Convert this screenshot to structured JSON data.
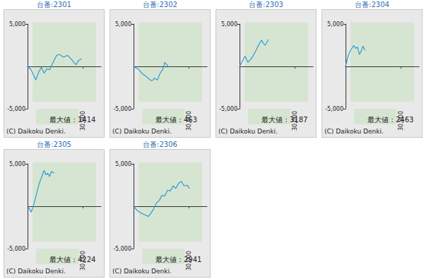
{
  "chart_data": [
    {
      "type": "line",
      "title": "台番:2301",
      "color": "#2f9ad6",
      "x": [
        0,
        1900,
        4500,
        6000,
        7500,
        9000,
        10500,
        12000,
        13500,
        15800,
        17300,
        19500,
        21800,
        24000,
        26300,
        27800,
        29300
      ],
      "values": [
        0,
        -400,
        -1600,
        -700,
        -100,
        -800,
        -300,
        -400,
        300,
        1300,
        1414,
        1100,
        1300,
        800,
        200,
        700,
        900
      ],
      "xlim": [
        0,
        40000
      ],
      "ylim": [
        -5000,
        5000
      ],
      "xticks": [
        {
          "value": 30000,
          "label": "30,000"
        }
      ],
      "yticks": [
        {
          "value": 5000,
          "label": "5,000"
        },
        {
          "value": -5000,
          "label": "-5,000"
        }
      ],
      "grid": false,
      "annotations": [
        "最大値：1414",
        "(C) Daikoku Denki."
      ]
    },
    {
      "type": "line",
      "title": "台番:2302",
      "color": "#2f9ad6",
      "x": [
        0,
        3000,
        5000,
        7000,
        8500,
        10000,
        11500,
        13000,
        14500,
        16000,
        17000,
        18500,
        19500
      ],
      "values": [
        0,
        -400,
        -900,
        -1200,
        -1500,
        -1700,
        -1400,
        -1600,
        -800,
        -300,
        463,
        100,
        -100
      ],
      "xlim": [
        0,
        40000
      ],
      "ylim": [
        -5000,
        5000
      ],
      "xticks": [
        {
          "value": 30000,
          "label": "30,000"
        }
      ],
      "yticks": [
        {
          "value": 5000,
          "label": "5,000"
        },
        {
          "value": -5000,
          "label": "-5,000"
        }
      ],
      "grid": false,
      "annotations": [
        "最大値：463",
        "(C) Daikoku Denki."
      ]
    },
    {
      "type": "line",
      "title": "台番:2303",
      "color": "#2f9ad6",
      "x": [
        0,
        1500,
        3000,
        4500,
        6000,
        7500,
        9000,
        10500,
        12000,
        13000,
        14000,
        15000,
        15800
      ],
      "values": [
        0,
        600,
        1200,
        500,
        800,
        1300,
        1900,
        2600,
        3100,
        2700,
        2500,
        2900,
        3187
      ],
      "xlim": [
        0,
        40000
      ],
      "ylim": [
        -5000,
        5000
      ],
      "xticks": [
        {
          "value": 30000,
          "label": "30,000"
        }
      ],
      "yticks": [
        {
          "value": 5000,
          "label": "5,000"
        },
        {
          "value": -5000,
          "label": "-5,000"
        }
      ],
      "grid": false,
      "annotations": [
        "最大値：3187",
        "(C) Daikoku Denki."
      ]
    },
    {
      "type": "line",
      "title": "台番:2304",
      "color": "#2f9ad6",
      "x": [
        0,
        1000,
        2000,
        3000,
        4000,
        4500,
        5500,
        6500,
        7500,
        8500,
        9500,
        10500
      ],
      "values": [
        0,
        900,
        1600,
        2000,
        2300,
        2463,
        2100,
        2300,
        1400,
        1800,
        2400,
        1900
      ],
      "xlim": [
        0,
        40000
      ],
      "ylim": [
        -5000,
        5000
      ],
      "xticks": [
        {
          "value": 30000,
          "label": "30,000"
        }
      ],
      "yticks": [
        {
          "value": 5000,
          "label": "5,000"
        },
        {
          "value": -5000,
          "label": "-5,000"
        }
      ],
      "grid": false,
      "annotations": [
        "最大値：2463",
        "(C) Daikoku Denki."
      ]
    },
    {
      "type": "line",
      "title": "台番:2305",
      "color": "#2f9ad6",
      "x": [
        0,
        1000,
        2000,
        3500,
        5000,
        6500,
        8000,
        9000,
        10000,
        11000,
        12000,
        13000,
        14500
      ],
      "values": [
        0,
        -300,
        -700,
        300,
        1600,
        2800,
        3600,
        4224,
        3700,
        3900,
        3500,
        4100,
        3900
      ],
      "xlim": [
        0,
        40000
      ],
      "ylim": [
        -5000,
        5000
      ],
      "xticks": [
        {
          "value": 30000,
          "label": "30,000"
        }
      ],
      "yticks": [
        {
          "value": 5000,
          "label": "5,000"
        },
        {
          "value": -5000,
          "label": "-5,000"
        }
      ],
      "grid": false,
      "annotations": [
        "最大値：4224",
        "(C) Daikoku Denki."
      ]
    },
    {
      "type": "line",
      "title": "台番:2306",
      "color": "#2f9ad6",
      "x": [
        0,
        2000,
        4000,
        6000,
        8000,
        9500,
        11000,
        12500,
        14000,
        15500,
        17000,
        18500,
        20000,
        21500,
        23000,
        24500,
        26000,
        27500,
        29000,
        30500
      ],
      "values": [
        0,
        -500,
        -800,
        -1000,
        -1200,
        -800,
        -300,
        400,
        700,
        1300,
        1200,
        1900,
        1800,
        2400,
        2100,
        2700,
        2941,
        2400,
        2500,
        2100
      ],
      "xlim": [
        0,
        40000
      ],
      "ylim": [
        -5000,
        5000
      ],
      "xticks": [
        {
          "value": 30000,
          "label": "30,000"
        }
      ],
      "yticks": [
        {
          "value": 5000,
          "label": "5,000"
        },
        {
          "value": -5000,
          "label": "-5,000"
        }
      ],
      "grid": false,
      "annotations": [
        "最大値：2941",
        "(C) Daikoku Denki."
      ]
    }
  ]
}
